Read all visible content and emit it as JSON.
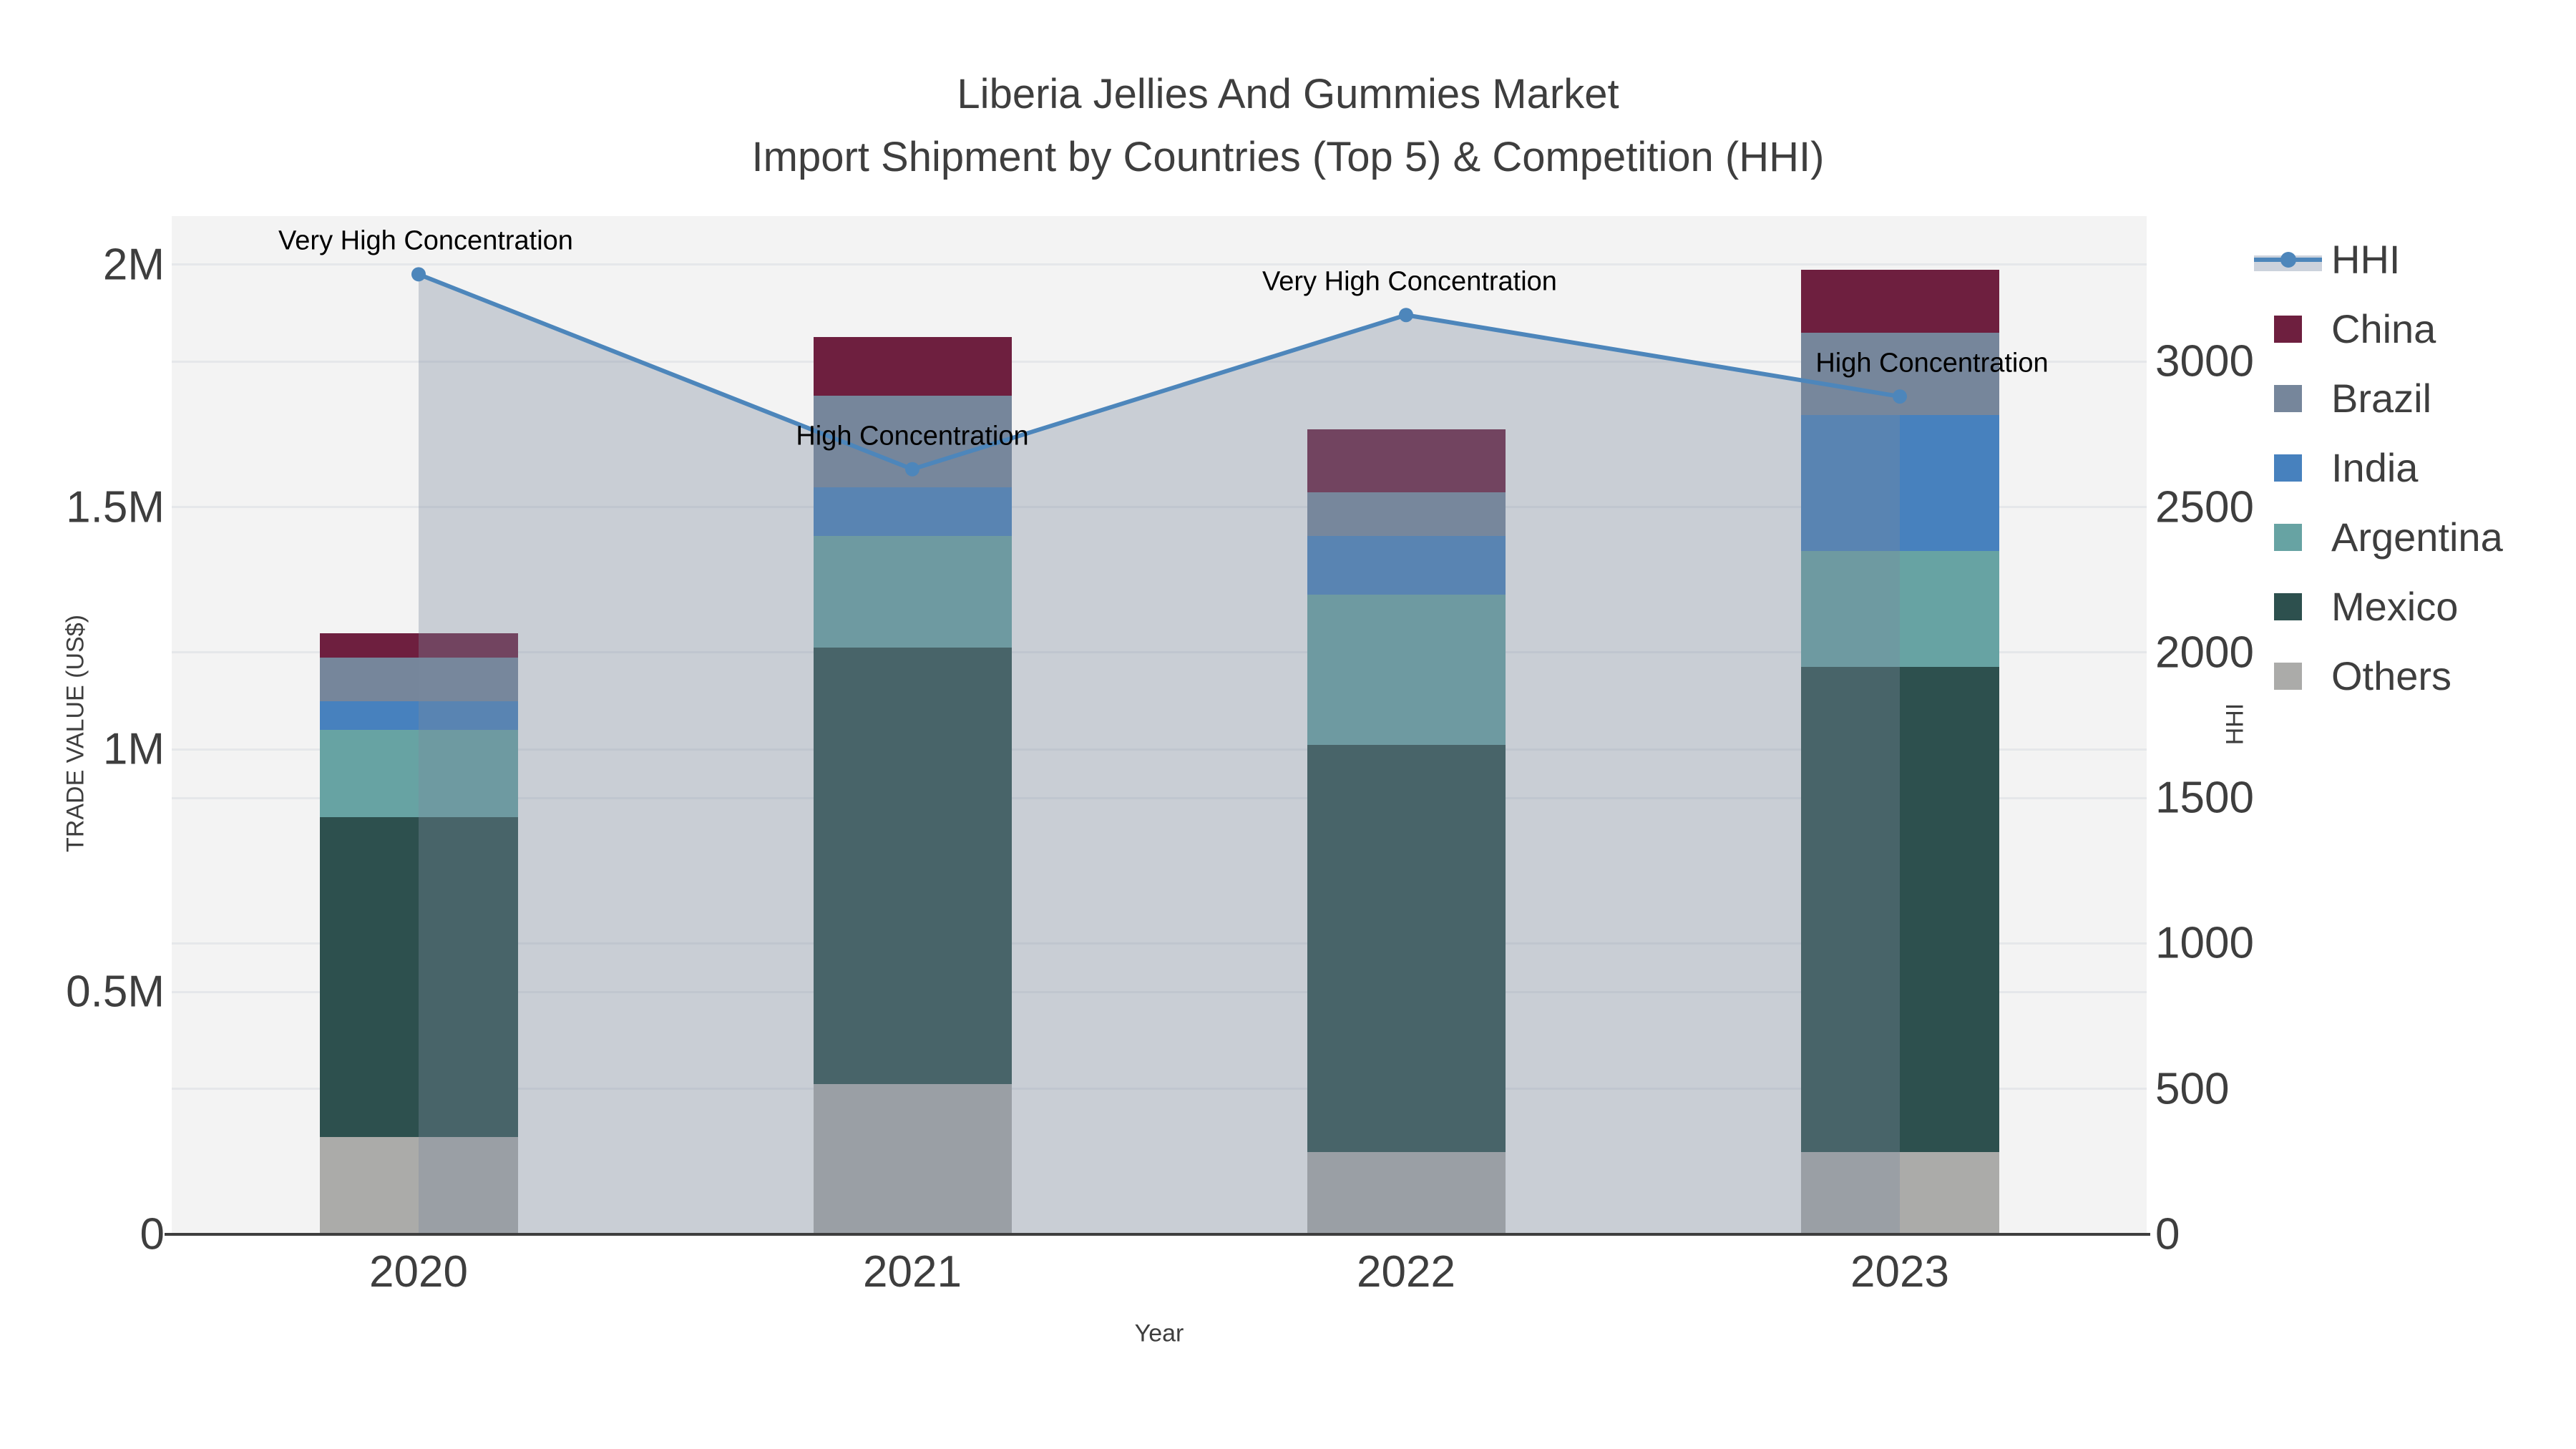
{
  "title": {
    "line1": "Liberia Jellies And Gummies Market",
    "line2": "Import Shipment by Countries (Top 5) & Competition (HHI)"
  },
  "axes": {
    "x": {
      "title": "Year"
    },
    "y_left": {
      "title": "TRADE VALUE (US$)",
      "ticks": [
        {
          "label": "0",
          "value": 0
        },
        {
          "label": "0.5M",
          "value": 500000
        },
        {
          "label": "1M",
          "value": 1000000
        },
        {
          "label": "1.5M",
          "value": 1500000
        },
        {
          "label": "2M",
          "value": 2000000
        }
      ],
      "range": [
        0,
        2100000
      ]
    },
    "y_right": {
      "title": "HHI",
      "ticks": [
        {
          "label": "0",
          "value": 0
        },
        {
          "label": "500",
          "value": 500
        },
        {
          "label": "1000",
          "value": 1000
        },
        {
          "label": "1500",
          "value": 1500
        },
        {
          "label": "2000",
          "value": 2000
        },
        {
          "label": "2500",
          "value": 2500
        },
        {
          "label": "3000",
          "value": 3000
        }
      ],
      "range": [
        0,
        3500
      ]
    }
  },
  "colors": {
    "plot_bg": "#f3f3f3",
    "gridline": "#e5e7ea",
    "axis_line": "#3e3e3e",
    "text": "#3e3e3e",
    "hhi_line": "#4d86bb",
    "hhi_fill": "rgba(124,138,158,0.35)",
    "china": "#6e1f3f",
    "brazil": "#76869b",
    "india": "#4781be",
    "argentina": "#67a3a3",
    "mexico": "#2d504e",
    "others": "#ababa9"
  },
  "legend": {
    "items": [
      {
        "label": "HHI",
        "type": "line",
        "color": "#4d86bb"
      },
      {
        "label": "China",
        "type": "swatch",
        "color": "#6e1f3f"
      },
      {
        "label": "Brazil",
        "type": "swatch",
        "color": "#76869b"
      },
      {
        "label": "India",
        "type": "swatch",
        "color": "#4781be"
      },
      {
        "label": "Argentina",
        "type": "swatch",
        "color": "#67a3a3"
      },
      {
        "label": "Mexico",
        "type": "swatch",
        "color": "#2d504e"
      },
      {
        "label": "Others",
        "type": "swatch",
        "color": "#ababa9"
      }
    ]
  },
  "chart_data": {
    "type": "bar",
    "subtype": "stacked-bars-with-line-overlay",
    "categories": [
      "2020",
      "2021",
      "2022",
      "2023"
    ],
    "bar_unit": "US$",
    "series": [
      {
        "name": "Others",
        "color": "#ababa9",
        "values": [
          200000,
          310000,
          170000,
          170000
        ]
      },
      {
        "name": "Mexico",
        "color": "#2d504e",
        "values": [
          660000,
          900000,
          840000,
          1000000
        ]
      },
      {
        "name": "Argentina",
        "color": "#67a3a3",
        "values": [
          180000,
          230000,
          310000,
          240000
        ]
      },
      {
        "name": "India",
        "color": "#4781be",
        "values": [
          60000,
          100000,
          120000,
          280000
        ]
      },
      {
        "name": "Brazil",
        "color": "#76869b",
        "values": [
          90000,
          190000,
          90000,
          170000
        ]
      },
      {
        "name": "China",
        "color": "#6e1f3f",
        "values": [
          50000,
          120000,
          130000,
          130000
        ]
      }
    ],
    "bar_totals": [
      1240000,
      1850000,
      1660000,
      1990000
    ],
    "line_series": {
      "name": "HHI",
      "axis": "right",
      "values": [
        3300,
        2630,
        3160,
        2880
      ],
      "has_area_fill": true
    },
    "annotations": [
      {
        "category": "2020",
        "text": "Very High Concentration",
        "x_offset": 10
      },
      {
        "category": "2021",
        "text": "High Concentration",
        "x_offset": 0
      },
      {
        "category": "2022",
        "text": "Very High Concentration",
        "x_offset": 5
      },
      {
        "category": "2023",
        "text": "High Concentration",
        "x_offset": 45
      }
    ],
    "xlabel": "Year",
    "ylabel_left": "TRADE VALUE (US$)",
    "ylabel_right": "HHI",
    "ylim_left": [
      0,
      2100000
    ],
    "ylim_right": [
      0,
      3500
    ],
    "grid": true,
    "legend_position": "right"
  }
}
